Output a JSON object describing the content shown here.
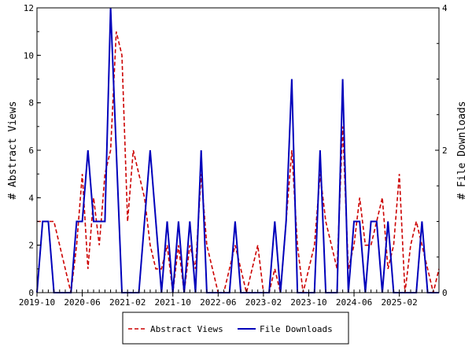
{
  "chart_data": {
    "type": "line",
    "ylabel": "# Abstract Views",
    "y2label": "# File Downloads",
    "ylim": [
      0,
      12
    ],
    "y2lim": [
      0,
      4
    ],
    "yticks": [
      0,
      2,
      4,
      6,
      8,
      10,
      12
    ],
    "y2ticks": [
      0,
      2,
      4
    ],
    "x_date_range": [
      "2019-10",
      "2025-09"
    ],
    "xticks": [
      "2019-10",
      "2020-06",
      "2021-02",
      "2021-10",
      "2022-06",
      "2023-02",
      "2023-10",
      "2024-06",
      "2025-02"
    ],
    "grid": false,
    "legend_position": "bottom",
    "series": [
      {
        "name": "Abstract Views",
        "axis": "left",
        "color": "#cc0000",
        "style": "dashed",
        "x": [
          "2019-10",
          "2019-11",
          "2019-12",
          "2020-01",
          "2020-02",
          "2020-03",
          "2020-04",
          "2020-05",
          "2020-06",
          "2020-07",
          "2020-08",
          "2020-09",
          "2020-10",
          "2020-11",
          "2020-12",
          "2021-01",
          "2021-02",
          "2021-03",
          "2021-04",
          "2021-05",
          "2021-06",
          "2021-07",
          "2021-08",
          "2021-09",
          "2021-10",
          "2021-11",
          "2021-12",
          "2022-01",
          "2022-02",
          "2022-03",
          "2022-04",
          "2022-05",
          "2022-06",
          "2022-07",
          "2022-08",
          "2022-09",
          "2022-10",
          "2022-11",
          "2022-12",
          "2023-01",
          "2023-02",
          "2023-03",
          "2023-04",
          "2023-05",
          "2023-06",
          "2023-07",
          "2023-08",
          "2023-09",
          "2023-10",
          "2023-11",
          "2023-12",
          "2024-01",
          "2024-02",
          "2024-03",
          "2024-04",
          "2024-05",
          "2024-06",
          "2024-07",
          "2024-08",
          "2024-09",
          "2024-10",
          "2024-11",
          "2024-12",
          "2025-01",
          "2025-02",
          "2025-03",
          "2025-04",
          "2025-05",
          "2025-06",
          "2025-07",
          "2025-08",
          "2025-09"
        ],
        "values": [
          3,
          3,
          3,
          3,
          2,
          1,
          0,
          2,
          5,
          1,
          4,
          2,
          5,
          6,
          11,
          10,
          3,
          6,
          5,
          4,
          2,
          1,
          1,
          2,
          0,
          2,
          0,
          2,
          1,
          5,
          2,
          1,
          0,
          0,
          1,
          2,
          1,
          0,
          1,
          2,
          0,
          0,
          1,
          0,
          3,
          6,
          2,
          0,
          1,
          2,
          5,
          3,
          2,
          1,
          7,
          1,
          2,
          4,
          2,
          2,
          3,
          4,
          1,
          2,
          5,
          0,
          2,
          3,
          2,
          1,
          0,
          1
        ]
      },
      {
        "name": "File Downloads",
        "axis": "right",
        "color": "#0000bb",
        "style": "solid",
        "x": [
          "2019-10",
          "2019-11",
          "2019-12",
          "2020-01",
          "2020-02",
          "2020-03",
          "2020-04",
          "2020-05",
          "2020-06",
          "2020-07",
          "2020-08",
          "2020-09",
          "2020-10",
          "2020-11",
          "2020-12",
          "2021-01",
          "2021-02",
          "2021-03",
          "2021-04",
          "2021-05",
          "2021-06",
          "2021-07",
          "2021-08",
          "2021-09",
          "2021-10",
          "2021-11",
          "2021-12",
          "2022-01",
          "2022-02",
          "2022-03",
          "2022-04",
          "2022-05",
          "2022-06",
          "2022-07",
          "2022-08",
          "2022-09",
          "2022-10",
          "2022-11",
          "2022-12",
          "2023-01",
          "2023-02",
          "2023-03",
          "2023-04",
          "2023-05",
          "2023-06",
          "2023-07",
          "2023-08",
          "2023-09",
          "2023-10",
          "2023-11",
          "2023-12",
          "2024-01",
          "2024-02",
          "2024-03",
          "2024-04",
          "2024-05",
          "2024-06",
          "2024-07",
          "2024-08",
          "2024-09",
          "2024-10",
          "2024-11",
          "2024-12",
          "2025-01",
          "2025-02",
          "2025-03",
          "2025-04",
          "2025-05",
          "2025-06",
          "2025-07",
          "2025-08",
          "2025-09"
        ],
        "values": [
          0,
          1,
          1,
          0,
          0,
          0,
          0,
          1,
          1,
          2,
          1,
          1,
          1,
          4,
          2,
          0,
          0,
          0,
          0,
          1,
          2,
          1,
          0,
          1,
          0,
          1,
          0,
          1,
          0,
          2,
          0,
          0,
          0,
          0,
          0,
          1,
          0,
          0,
          0,
          0,
          0,
          0,
          1,
          0,
          1,
          3,
          0,
          0,
          0,
          0,
          2,
          0,
          0,
          0,
          3,
          0,
          1,
          1,
          0,
          1,
          1,
          0,
          1,
          0,
          0,
          0,
          0,
          0,
          1,
          0,
          0,
          0
        ]
      }
    ]
  }
}
